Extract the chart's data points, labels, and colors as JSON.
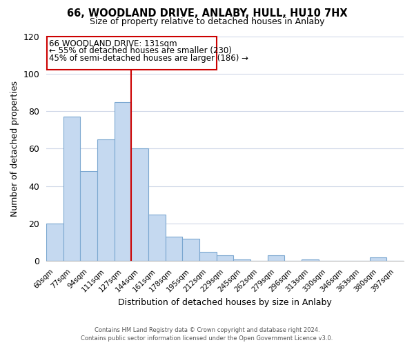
{
  "title": "66, WOODLAND DRIVE, ANLABY, HULL, HU10 7HX",
  "subtitle": "Size of property relative to detached houses in Anlaby",
  "xlabel": "Distribution of detached houses by size in Anlaby",
  "ylabel": "Number of detached properties",
  "footer_line1": "Contains HM Land Registry data © Crown copyright and database right 2024.",
  "footer_line2": "Contains public sector information licensed under the Open Government Licence v3.0.",
  "bar_labels": [
    "60sqm",
    "77sqm",
    "94sqm",
    "111sqm",
    "127sqm",
    "144sqm",
    "161sqm",
    "178sqm",
    "195sqm",
    "212sqm",
    "229sqm",
    "245sqm",
    "262sqm",
    "279sqm",
    "296sqm",
    "313sqm",
    "330sqm",
    "346sqm",
    "363sqm",
    "380sqm",
    "397sqm"
  ],
  "bar_values": [
    20,
    77,
    48,
    65,
    85,
    60,
    25,
    13,
    12,
    5,
    3,
    1,
    0,
    3,
    0,
    1,
    0,
    0,
    0,
    2,
    0
  ],
  "bar_color": "#c5d9f0",
  "bar_edge_color": "#7ba7d0",
  "annotation_title": "66 WOODLAND DRIVE: 131sqm",
  "annotation_line1": "← 55% of detached houses are smaller (230)",
  "annotation_line2": "45% of semi-detached houses are larger (186) →",
  "vline_x": 4.5,
  "vline_color": "#cc0000",
  "box_edge_color": "#cc0000",
  "ylim": [
    0,
    120
  ],
  "yticks": [
    0,
    20,
    40,
    60,
    80,
    100,
    120
  ],
  "background_color": "#ffffff",
  "grid_color": "#d0d8e8"
}
